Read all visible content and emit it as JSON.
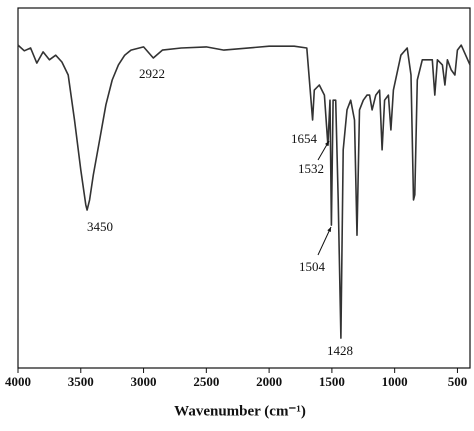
{
  "chart_data": {
    "type": "line",
    "xlabel": "Wavenumber (cm⁻¹)",
    "xlim": [
      4000,
      400
    ],
    "ylim": [
      0,
      100
    ],
    "xticks": [
      4000,
      3500,
      3000,
      2500,
      2000,
      1500,
      1000,
      500
    ],
    "color": "#333333",
    "x": [
      4000,
      3950,
      3900,
      3850,
      3800,
      3750,
      3700,
      3650,
      3600,
      3550,
      3500,
      3460,
      3450,
      3430,
      3400,
      3350,
      3300,
      3250,
      3200,
      3150,
      3100,
      3000,
      2922,
      2850,
      2700,
      2500,
      2360,
      2000,
      1800,
      1700,
      1654,
      1640,
      1600,
      1560,
      1532,
      1515,
      1504,
      1490,
      1470,
      1450,
      1428,
      1410,
      1380,
      1350,
      1320,
      1300,
      1280,
      1250,
      1220,
      1200,
      1180,
      1150,
      1120,
      1100,
      1080,
      1050,
      1030,
      1010,
      950,
      900,
      870,
      850,
      840,
      820,
      780,
      750,
      700,
      680,
      660,
      620,
      600,
      580,
      550,
      520,
      500,
      470,
      400
    ],
    "values": [
      89.7,
      88.1,
      88.9,
      84.7,
      87.8,
      85.6,
      86.9,
      85.0,
      81.4,
      68.9,
      55.0,
      45.3,
      43.9,
      46.7,
      53.6,
      63.3,
      73.1,
      80.0,
      84.2,
      86.9,
      88.3,
      89.2,
      86.1,
      88.3,
      88.9,
      89.2,
      88.3,
      89.4,
      89.4,
      88.9,
      68.9,
      77.2,
      78.6,
      75.8,
      61.9,
      74.4,
      39.7,
      74.4,
      74.4,
      46.7,
      8.3,
      60.6,
      71.7,
      74.4,
      68.9,
      36.9,
      71.7,
      74.4,
      75.8,
      75.8,
      71.7,
      75.8,
      77.2,
      60.6,
      74.4,
      75.8,
      66.1,
      77.2,
      86.9,
      88.9,
      81.4,
      46.7,
      48.1,
      80.0,
      85.6,
      85.6,
      85.6,
      75.8,
      85.6,
      84.2,
      78.6,
      85.6,
      82.8,
      81.4,
      88.3,
      89.7,
      84.2
    ],
    "peak_labels": [
      3450,
      2922,
      1654,
      1532,
      1504,
      1428
    ]
  }
}
